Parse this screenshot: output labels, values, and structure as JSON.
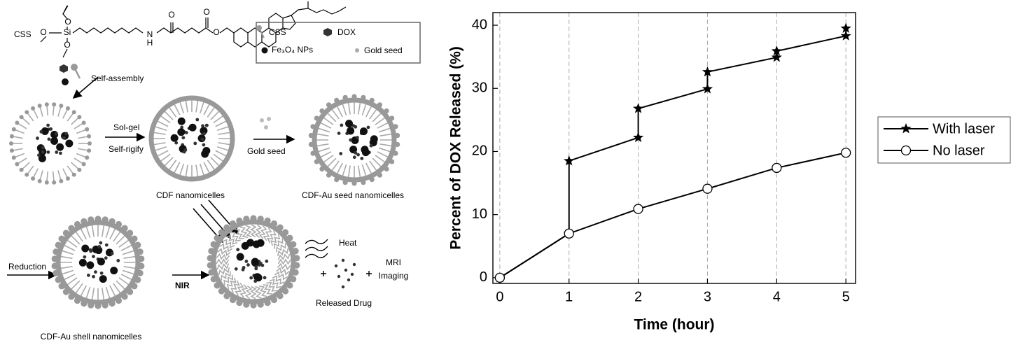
{
  "diagram": {
    "css_label": "CSS",
    "structure_atoms": [
      "O",
      "O",
      "Si",
      "O",
      "N",
      "H",
      "O",
      "O",
      "O"
    ],
    "legend": {
      "css": "CSS",
      "dox": "DOX",
      "fe3o4": "Fe₃O₄ NPs",
      "gold_seed": "Gold seed"
    },
    "steps": {
      "self_assembly": "Self-assembly",
      "sol_gel": "Sol-gel",
      "self_rigify": "Self-rigify",
      "gold_seed": "Gold seed",
      "reduction": "Reduction",
      "nir": "NIR",
      "heat": "Heat",
      "mri": "MRI",
      "imaging": "Imaging",
      "released_drug": "Released Drug"
    },
    "products": {
      "cdf": "CDF nanomicelles",
      "cdf_au_seed": "CDF-Au seed nanomicelles",
      "cdf_au_shell": "CDF-Au shell nanomicelles"
    }
  },
  "chart_data": {
    "type": "line",
    "xlabel": "Time (hour)",
    "ylabel": "Percent of DOX Released (%)",
    "xlim": [
      -0.1,
      5.14
    ],
    "ylim": [
      -0.9,
      42
    ],
    "xticks": [
      0,
      1,
      2,
      3,
      4,
      5
    ],
    "yticks": [
      0,
      10,
      20,
      30,
      40
    ],
    "grid": "x",
    "legend": "right",
    "series": [
      {
        "name": "With laser",
        "color": "#000000",
        "marker": "star",
        "x": [
          0,
          1,
          1,
          2,
          2,
          3,
          3,
          4,
          4,
          5,
          5
        ],
        "values": [
          0,
          7,
          18.5,
          22.2,
          26.8,
          29.9,
          32.6,
          34.9,
          35.9,
          38.3,
          39.5
        ]
      },
      {
        "name": "No laser",
        "color": "#000000",
        "marker": "circle",
        "x": [
          0,
          1,
          2,
          3,
          4,
          5
        ],
        "values": [
          0,
          7,
          10.9,
          14.1,
          17.4,
          19.8
        ]
      }
    ]
  }
}
